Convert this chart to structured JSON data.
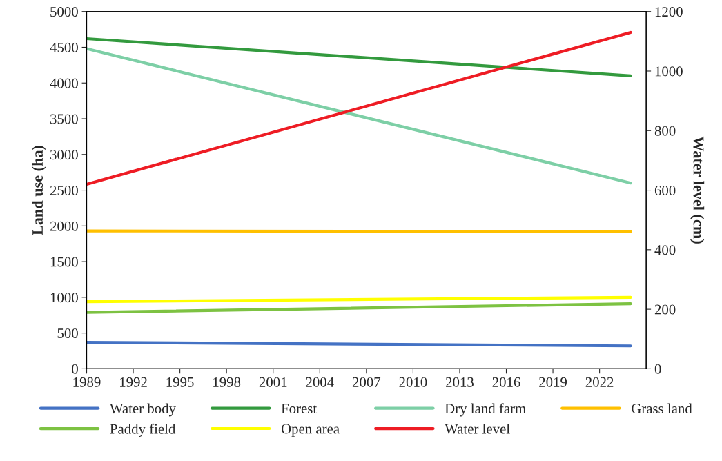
{
  "chart_data": {
    "type": "line",
    "ylabel": "Land use (ha)",
    "y2label": "Water level (cm)",
    "x": [
      1989,
      2024
    ],
    "xlim": [
      1989,
      2025
    ],
    "xticks": [
      1989,
      1992,
      1995,
      1998,
      2001,
      2004,
      2007,
      2010,
      2013,
      2016,
      2019,
      2022
    ],
    "ylim": [
      0,
      5000
    ],
    "yticks": [
      0,
      500,
      1000,
      1500,
      2000,
      2500,
      3000,
      3500,
      4000,
      4500,
      5000
    ],
    "y2lim": [
      0,
      1200
    ],
    "y2ticks": [
      0,
      200,
      400,
      600,
      800,
      1000,
      1200
    ],
    "grid": false,
    "legend": "bottom",
    "marker": "none",
    "line_style": "solid",
    "series": [
      {
        "name": "Water body",
        "color": "#4472c4",
        "values": [
          370,
          320
        ]
      },
      {
        "name": "Forest",
        "color": "#339a3e",
        "values": [
          4620,
          4100
        ]
      },
      {
        "name": "Dry land farm",
        "color": "#7dcfa6",
        "values": [
          4480,
          2600
        ]
      },
      {
        "name": "Grass land",
        "color": "#ffc000",
        "values": [
          1930,
          1920
        ]
      },
      {
        "name": "Paddy field",
        "color": "#7dc242",
        "values": [
          790,
          910
        ]
      },
      {
        "name": "Open area",
        "color": "#ffff00",
        "values": [
          940,
          1000
        ]
      },
      {
        "name": "Water level",
        "color": "#ee1c24",
        "axis": "y2",
        "values": [
          620,
          1130
        ]
      }
    ]
  }
}
